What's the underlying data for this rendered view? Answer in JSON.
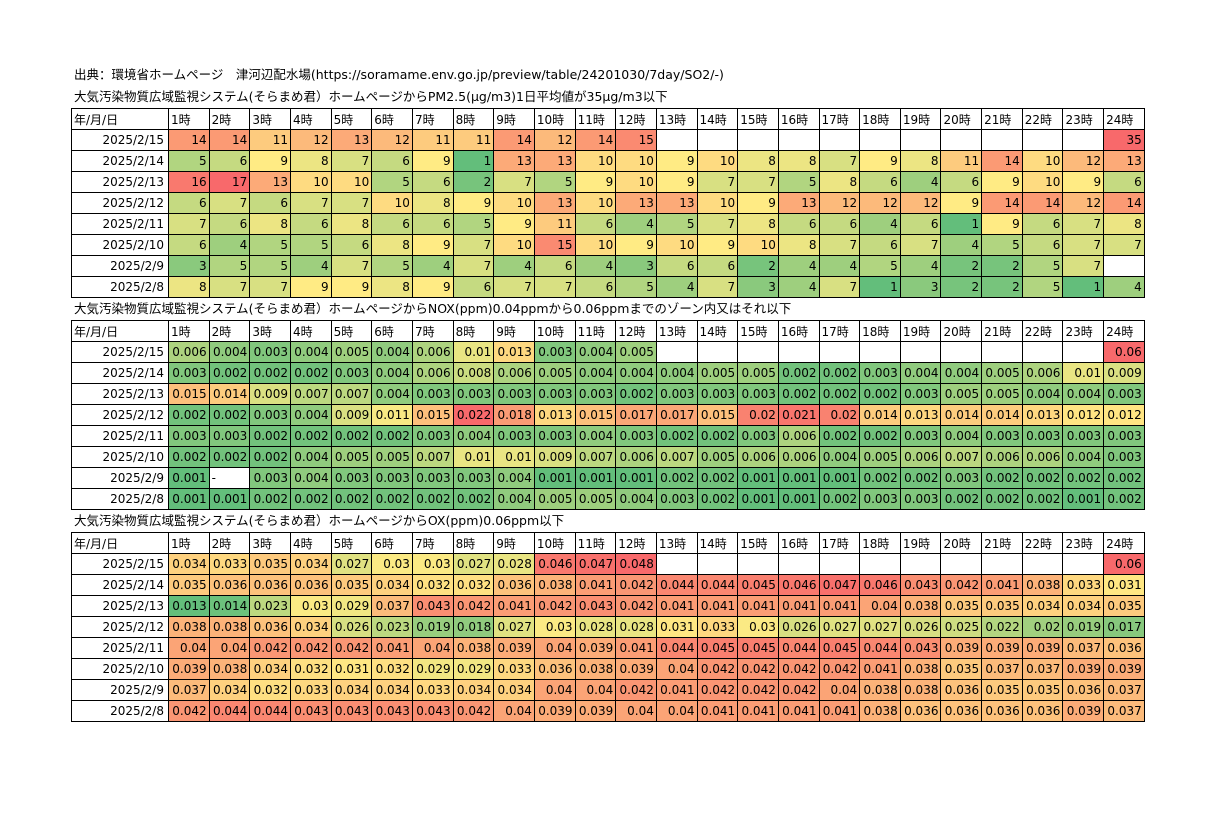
{
  "source_line": "出典：環境省ホームページ　津河辺配水場(https://soramame.env.go.jp/preview/table/24201030/7day/SO2/-)",
  "hours": [
    "1時",
    "2時",
    "3時",
    "4時",
    "5時",
    "6時",
    "7時",
    "8時",
    "9時",
    "10時",
    "11時",
    "12時",
    "13時",
    "14時",
    "15時",
    "16時",
    "17時",
    "18時",
    "19時",
    "20時",
    "21時",
    "22時",
    "23時",
    "24時"
  ],
  "tables": [
    {
      "title": "大気汚染物質広域監視システム(そらまめ君）ホームページからPM2.5(μg/m3)1日平均値が35μg/m3以下",
      "header_label": "年/月/日",
      "color_range": [
        1,
        17
      ],
      "rows": [
        {
          "date": "2025/2/15",
          "values": [
            "14",
            "14",
            "11",
            "12",
            "13",
            "12",
            "11",
            "11",
            "14",
            "12",
            "14",
            "15",
            "",
            "",
            "",
            "",
            "",
            "",
            "",
            "",
            "",
            "",
            "",
            "35"
          ]
        },
        {
          "date": "2025/2/14",
          "values": [
            "5",
            "6",
            "9",
            "8",
            "7",
            "6",
            "9",
            "1",
            "13",
            "13",
            "10",
            "10",
            "9",
            "10",
            "8",
            "8",
            "7",
            "9",
            "8",
            "11",
            "14",
            "10",
            "12",
            "13"
          ]
        },
        {
          "date": "2025/2/13",
          "values": [
            "16",
            "17",
            "13",
            "10",
            "10",
            "5",
            "6",
            "2",
            "7",
            "5",
            "9",
            "10",
            "9",
            "7",
            "7",
            "5",
            "8",
            "6",
            "4",
            "6",
            "9",
            "10",
            "9",
            "6"
          ]
        },
        {
          "date": "2025/2/12",
          "values": [
            "6",
            "7",
            "6",
            "7",
            "7",
            "10",
            "8",
            "9",
            "10",
            "13",
            "10",
            "13",
            "13",
            "10",
            "9",
            "13",
            "12",
            "12",
            "12",
            "9",
            "14",
            "14",
            "12",
            "14"
          ]
        },
        {
          "date": "2025/2/11",
          "values": [
            "7",
            "6",
            "8",
            "6",
            "8",
            "6",
            "6",
            "5",
            "9",
            "11",
            "6",
            "4",
            "5",
            "7",
            "8",
            "6",
            "6",
            "4",
            "6",
            "1",
            "9",
            "6",
            "7",
            "8"
          ]
        },
        {
          "date": "2025/2/10",
          "values": [
            "6",
            "4",
            "5",
            "5",
            "6",
            "8",
            "9",
            "7",
            "10",
            "15",
            "10",
            "9",
            "10",
            "9",
            "10",
            "8",
            "7",
            "6",
            "7",
            "4",
            "5",
            "6",
            "7",
            "7"
          ]
        },
        {
          "date": "2025/2/9",
          "values": [
            "3",
            "5",
            "5",
            "4",
            "7",
            "5",
            "4",
            "7",
            "4",
            "6",
            "4",
            "3",
            "6",
            "6",
            "2",
            "4",
            "4",
            "5",
            "4",
            "2",
            "2",
            "5",
            "7",
            ""
          ]
        },
        {
          "date": "2025/2/8",
          "values": [
            "8",
            "7",
            "7",
            "9",
            "9",
            "8",
            "9",
            "6",
            "7",
            "7",
            "6",
            "5",
            "4",
            "7",
            "3",
            "4",
            "7",
            "1",
            "3",
            "2",
            "2",
            "5",
            "1",
            "4"
          ]
        }
      ]
    },
    {
      "title": "大気汚染物質広域監視システム(そらまめ君）ホームページからNOX(ppm)0.04ppmから0.06ppmまでのゾーン内又はそれ以下",
      "header_label": "年/月/日",
      "color_range": [
        0.001,
        0.022
      ],
      "rows": [
        {
          "date": "2025/2/15",
          "values": [
            "0.006",
            "0.004",
            "0.003",
            "0.004",
            "0.005",
            "0.004",
            "0.006",
            "0.01",
            "0.013",
            "0.003",
            "0.004",
            "0.005",
            "",
            "",
            "",
            "",
            "",
            "",
            "",
            "",
            "",
            "",
            "",
            "0.06"
          ]
        },
        {
          "date": "2025/2/14",
          "values": [
            "0.003",
            "0.002",
            "0.002",
            "0.002",
            "0.003",
            "0.004",
            "0.006",
            "0.008",
            "0.006",
            "0.005",
            "0.004",
            "0.004",
            "0.004",
            "0.005",
            "0.005",
            "0.002",
            "0.002",
            "0.003",
            "0.004",
            "0.004",
            "0.005",
            "0.006",
            "0.01",
            "0.009"
          ]
        },
        {
          "date": "2025/2/13",
          "values": [
            "0.015",
            "0.014",
            "0.009",
            "0.007",
            "0.007",
            "0.004",
            "0.003",
            "0.003",
            "0.003",
            "0.003",
            "0.003",
            "0.002",
            "0.003",
            "0.003",
            "0.003",
            "0.002",
            "0.002",
            "0.002",
            "0.003",
            "0.005",
            "0.005",
            "0.004",
            "0.004",
            "0.003"
          ]
        },
        {
          "date": "2025/2/12",
          "values": [
            "0.002",
            "0.002",
            "0.003",
            "0.004",
            "0.009",
            "0.011",
            "0.015",
            "0.022",
            "0.018",
            "0.013",
            "0.015",
            "0.017",
            "0.017",
            "0.015",
            "0.02",
            "0.021",
            "0.02",
            "0.014",
            "0.013",
            "0.014",
            "0.014",
            "0.013",
            "0.012",
            "0.012"
          ]
        },
        {
          "date": "2025/2/11",
          "values": [
            "0.003",
            "0.003",
            "0.002",
            "0.002",
            "0.002",
            "0.002",
            "0.003",
            "0.004",
            "0.003",
            "0.003",
            "0.004",
            "0.003",
            "0.002",
            "0.002",
            "0.003",
            "0.006",
            "0.002",
            "0.002",
            "0.003",
            "0.004",
            "0.003",
            "0.003",
            "0.003",
            "0.003"
          ]
        },
        {
          "date": "2025/2/10",
          "values": [
            "0.002",
            "0.002",
            "0.002",
            "0.004",
            "0.005",
            "0.005",
            "0.007",
            "0.01",
            "0.01",
            "0.009",
            "0.007",
            "0.006",
            "0.007",
            "0.005",
            "0.006",
            "0.006",
            "0.004",
            "0.005",
            "0.006",
            "0.007",
            "0.006",
            "0.006",
            "0.004",
            "0.003"
          ]
        },
        {
          "date": "2025/2/9",
          "values": [
            "0.001",
            "-",
            "0.003",
            "0.004",
            "0.003",
            "0.003",
            "0.003",
            "0.003",
            "0.004",
            "0.001",
            "0.001",
            "0.001",
            "0.002",
            "0.002",
            "0.001",
            "0.001",
            "0.001",
            "0.002",
            "0.002",
            "0.003",
            "0.002",
            "0.002",
            "0.002",
            "0.002"
          ]
        },
        {
          "date": "2025/2/8",
          "values": [
            "0.001",
            "0.001",
            "0.002",
            "0.002",
            "0.002",
            "0.002",
            "0.002",
            "0.002",
            "0.004",
            "0.005",
            "0.005",
            "0.004",
            "0.003",
            "0.002",
            "0.001",
            "0.001",
            "0.002",
            "0.003",
            "0.003",
            "0.002",
            "0.002",
            "0.002",
            "0.001",
            "0.002"
          ]
        }
      ]
    },
    {
      "title": "大気汚染物質広域監視システム(そらまめ君）ホームページからOX(ppm)0.06ppm以下",
      "header_label": "年/月/日",
      "color_range": [
        0.013,
        0.048
      ],
      "rows": [
        {
          "date": "2025/2/15",
          "values": [
            "0.034",
            "0.033",
            "0.035",
            "0.034",
            "0.027",
            "0.03",
            "0.03",
            "0.027",
            "0.028",
            "0.046",
            "0.047",
            "0.048",
            "",
            "",
            "",
            "",
            "",
            "",
            "",
            "",
            "",
            "",
            "",
            "0.06"
          ]
        },
        {
          "date": "2025/2/14",
          "values": [
            "0.035",
            "0.036",
            "0.036",
            "0.036",
            "0.035",
            "0.034",
            "0.032",
            "0.032",
            "0.036",
            "0.038",
            "0.041",
            "0.042",
            "0.044",
            "0.044",
            "0.045",
            "0.046",
            "0.047",
            "0.046",
            "0.043",
            "0.042",
            "0.041",
            "0.038",
            "0.033",
            "0.031"
          ]
        },
        {
          "date": "2025/2/13",
          "values": [
            "0.013",
            "0.014",
            "0.023",
            "0.03",
            "0.029",
            "0.037",
            "0.043",
            "0.042",
            "0.041",
            "0.042",
            "0.043",
            "0.042",
            "0.041",
            "0.041",
            "0.041",
            "0.041",
            "0.041",
            "0.04",
            "0.038",
            "0.035",
            "0.035",
            "0.034",
            "0.034",
            "0.035"
          ]
        },
        {
          "date": "2025/2/12",
          "values": [
            "0.038",
            "0.038",
            "0.036",
            "0.034",
            "0.026",
            "0.023",
            "0.019",
            "0.018",
            "0.027",
            "0.03",
            "0.028",
            "0.028",
            "0.031",
            "0.033",
            "0.03",
            "0.026",
            "0.027",
            "0.027",
            "0.026",
            "0.025",
            "0.022",
            "0.02",
            "0.019",
            "0.017"
          ]
        },
        {
          "date": "2025/2/11",
          "values": [
            "0.04",
            "0.04",
            "0.042",
            "0.042",
            "0.042",
            "0.041",
            "0.04",
            "0.038",
            "0.039",
            "0.04",
            "0.039",
            "0.041",
            "0.044",
            "0.045",
            "0.045",
            "0.044",
            "0.045",
            "0.044",
            "0.043",
            "0.039",
            "0.039",
            "0.039",
            "0.037",
            "0.036"
          ]
        },
        {
          "date": "2025/2/10",
          "values": [
            "0.039",
            "0.038",
            "0.034",
            "0.032",
            "0.031",
            "0.032",
            "0.029",
            "0.029",
            "0.033",
            "0.036",
            "0.038",
            "0.039",
            "0.04",
            "0.042",
            "0.042",
            "0.042",
            "0.042",
            "0.041",
            "0.038",
            "0.035",
            "0.037",
            "0.037",
            "0.039",
            "0.039"
          ]
        },
        {
          "date": "2025/2/9",
          "values": [
            "0.037",
            "0.034",
            "0.032",
            "0.033",
            "0.034",
            "0.034",
            "0.033",
            "0.034",
            "0.034",
            "0.04",
            "0.04",
            "0.042",
            "0.041",
            "0.042",
            "0.042",
            "0.042",
            "0.04",
            "0.038",
            "0.038",
            "0.036",
            "0.035",
            "0.035",
            "0.036",
            "0.037"
          ]
        },
        {
          "date": "2025/2/8",
          "values": [
            "0.042",
            "0.044",
            "0.044",
            "0.043",
            "0.043",
            "0.043",
            "0.043",
            "0.042",
            "0.04",
            "0.039",
            "0.039",
            "0.04",
            "0.04",
            "0.041",
            "0.041",
            "0.041",
            "0.041",
            "0.038",
            "0.036",
            "0.036",
            "0.036",
            "0.036",
            "0.039",
            "0.037"
          ]
        }
      ]
    }
  ],
  "colors": {
    "scale_low": "#63be7b",
    "scale_mid": "#ffeb84",
    "scale_high": "#f8696b",
    "highlight_24h": "#f8696b"
  }
}
